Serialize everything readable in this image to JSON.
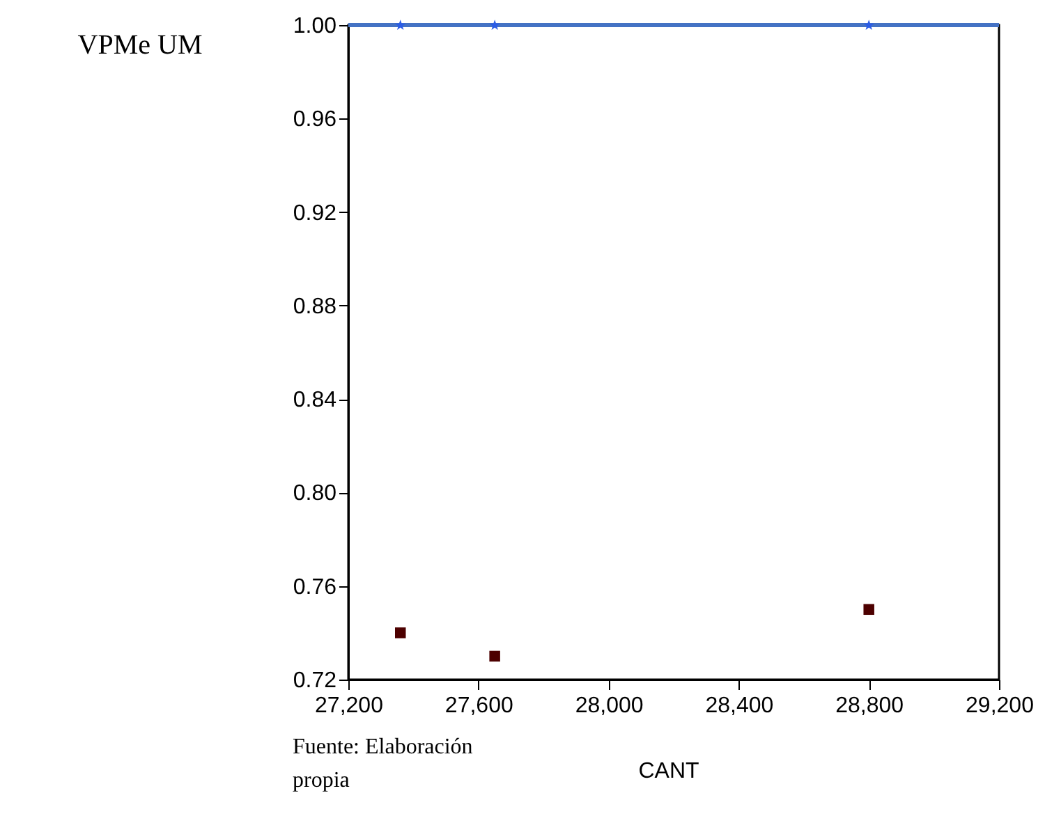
{
  "chart_data": {
    "type": "scatter",
    "xlabel": "CANT",
    "ylabel": "VPMe UM",
    "annotations": [
      "Fuente: Elaboración propia"
    ],
    "x": [
      27360,
      27650,
      28800
    ],
    "series": [
      {
        "color": "#4d0000",
        "values": [
          0.74,
          0.73,
          0.75
        ],
        "marker": "square"
      },
      {
        "color": "#2b5ce6",
        "values": [
          1.0,
          1.0,
          1.0
        ],
        "marker": "star"
      }
    ],
    "ref_lines": [
      {
        "axis": "y",
        "value": 1.0,
        "color": "#4472c4"
      }
    ],
    "xlim": [
      27200,
      29200
    ],
    "xticks": [
      {
        "value": 27200,
        "label": "27,200"
      },
      {
        "value": 27600,
        "label": "27,600"
      },
      {
        "value": 28000,
        "label": "28,000"
      },
      {
        "value": 28400,
        "label": "28,400"
      },
      {
        "value": 28800,
        "label": "28,800"
      },
      {
        "value": 29200,
        "label": "29,200"
      }
    ],
    "ylim": [
      0.72,
      1.0
    ],
    "yticks": [
      0.72,
      0.76,
      {
        "value": 0.8,
        "label": "0.80"
      },
      0.84,
      0.88,
      0.92,
      0.96,
      {
        "value": 1.0,
        "label": "1.00"
      }
    ],
    "grid": false
  }
}
